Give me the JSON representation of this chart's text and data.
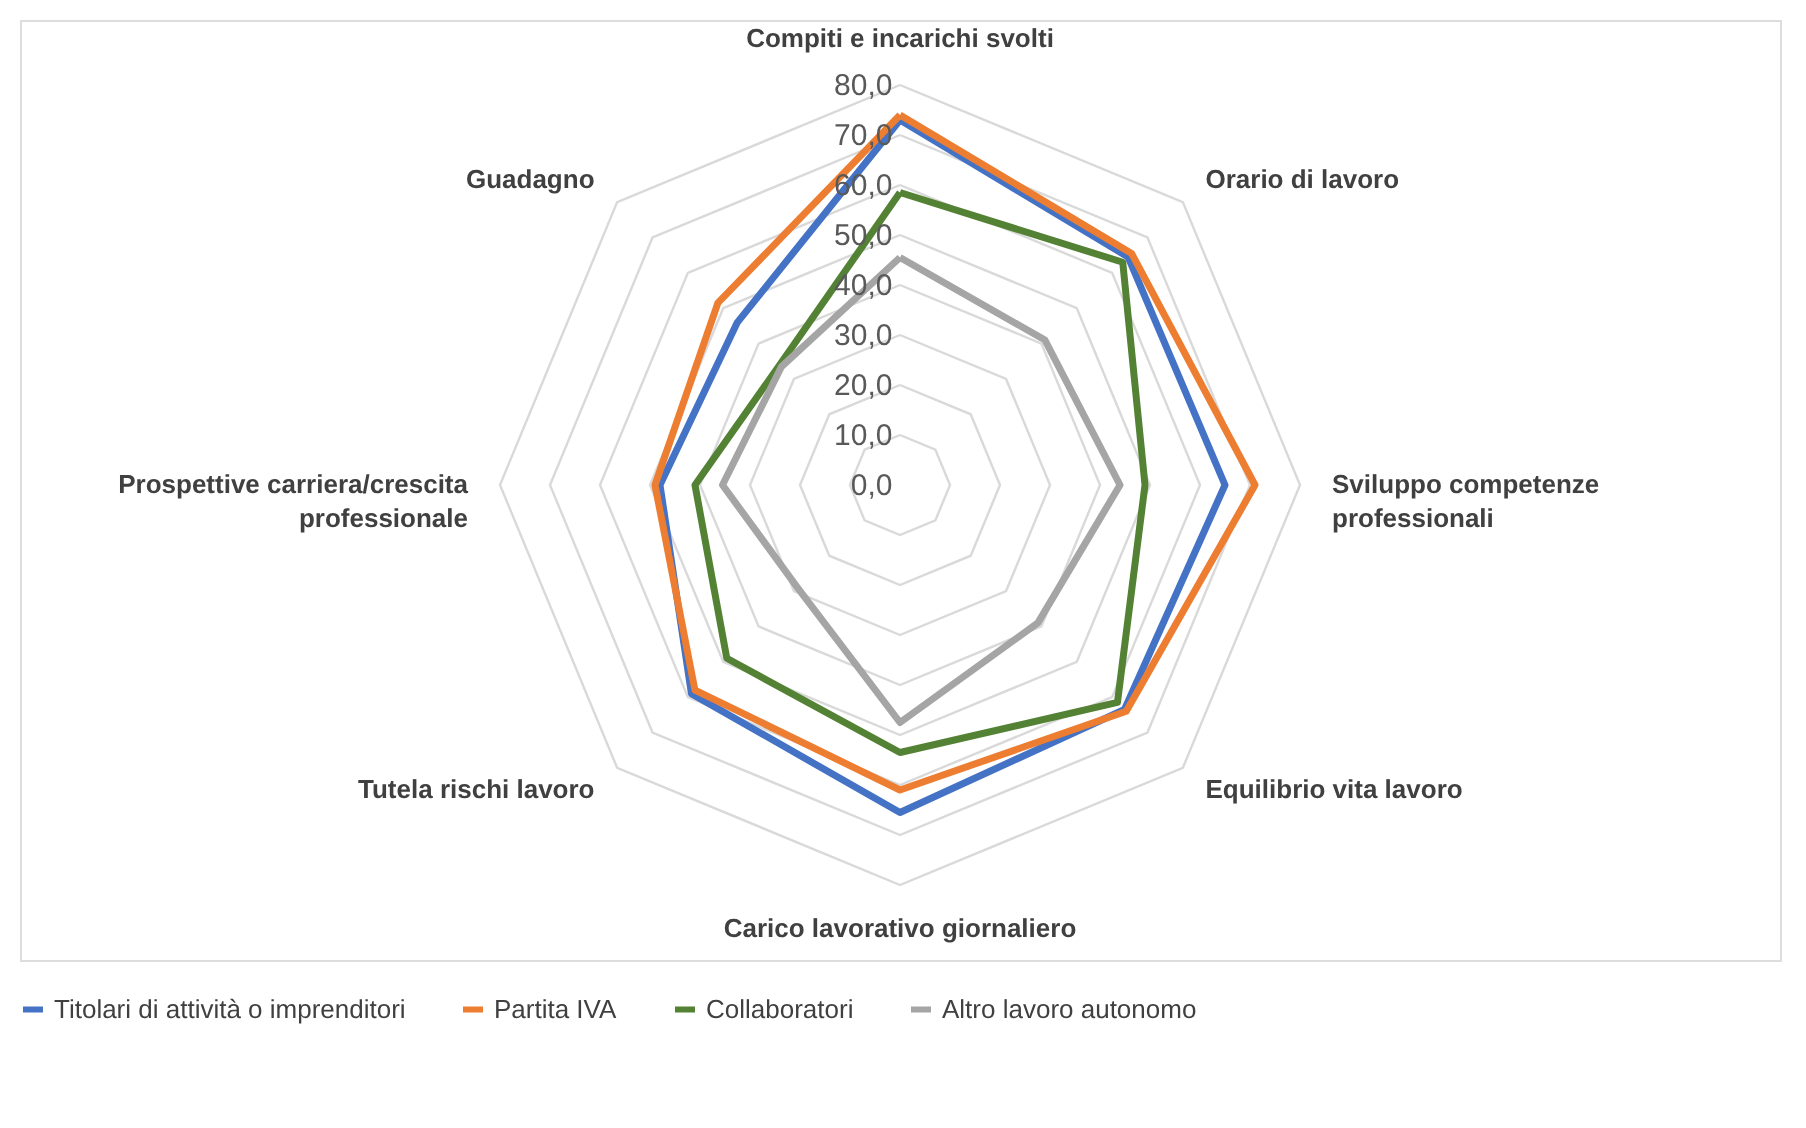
{
  "chart_data": {
    "type": "radar",
    "categories": [
      "Compiti e incarichi svolti",
      "Orario di lavoro",
      "Sviluppo competenze professionali",
      "Equilibrio vita lavoro",
      "Carico lavorativo giornaliero",
      "Tutela rischi lavoro",
      "Prospettive carriera/crescita professionale",
      "Guadagno"
    ],
    "series": [
      {
        "name": "Titolari di attività o imprenditori",
        "color": "#4472c4",
        "values": [
          73,
          64.5,
          65,
          63.5,
          65.5,
          59,
          48,
          46
        ]
      },
      {
        "name": "Partita IVA",
        "color": "#ed7d31",
        "values": [
          74,
          65.5,
          71,
          64,
          61,
          58,
          49,
          51.5
        ]
      },
      {
        "name": "Collaboratori",
        "color": "#548235",
        "values": [
          58.5,
          63,
          49,
          61.5,
          53.5,
          49,
          41,
          34
        ]
      },
      {
        "name": "Altro lavoro autonomo",
        "color": "#a5a5a5",
        "values": [
          45.5,
          41,
          44,
          39,
          47.5,
          29,
          35.5,
          33.5
        ]
      }
    ],
    "ylim": [
      0,
      80
    ],
    "yticks": [
      {
        "value": 0,
        "label": "0,0"
      },
      {
        "value": 10,
        "label": "10,0"
      },
      {
        "value": 20,
        "label": "20,0"
      },
      {
        "value": 30,
        "label": "30,0"
      },
      {
        "value": 40,
        "label": "40,0"
      },
      {
        "value": 50,
        "label": "50,0"
      },
      {
        "value": 60,
        "label": "60,0"
      },
      {
        "value": 70,
        "label": "70,0"
      },
      {
        "value": 80,
        "label": "80,0"
      }
    ],
    "grid": true,
    "legend": "bottom",
    "marker": "none"
  }
}
